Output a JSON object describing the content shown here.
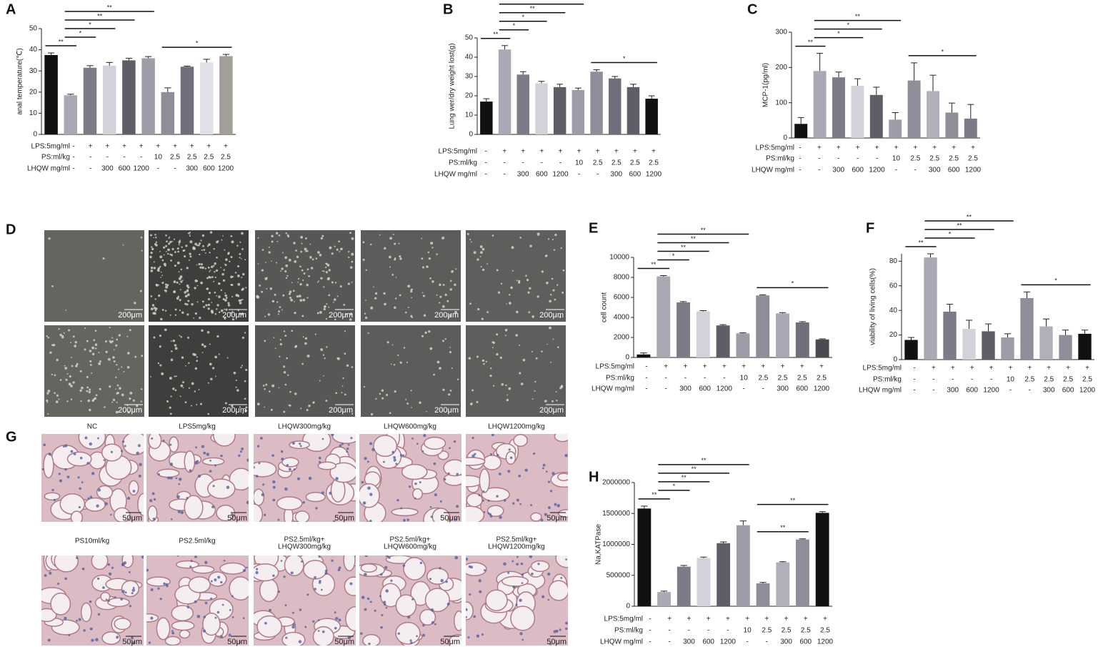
{
  "chart_data": [
    {
      "type": "bar",
      "panel_label": "A",
      "y_label": "anal temperature(℃)",
      "values": [
        37.5,
        18.5,
        31.5,
        32.5,
        35,
        36,
        20,
        32,
        34,
        37
      ],
      "errors": [
        1,
        0.5,
        1,
        1.5,
        1,
        0.8,
        2,
        0.3,
        1.5,
        0.8
      ],
      "colors": [
        "#111111",
        "#a9a9b5",
        "#7c7c88",
        "#d2d2da",
        "#5e5e68",
        "#9d9da9",
        "#8e8e9a",
        "#6f6f7b",
        "#e0e0e8",
        "#a19f97"
      ],
      "ylim": [
        0,
        50
      ],
      "yticks": [
        0,
        10,
        20,
        30,
        40,
        50
      ],
      "treatments": [
        {
          "name": "LPS:5mg/ml",
          "cells": [
            "-",
            "+",
            "+",
            "+",
            "+",
            "+",
            "+",
            "+",
            "+",
            "+"
          ]
        },
        {
          "name": "PS:ml/kg",
          "cells": [
            "-",
            "-",
            "-",
            "-",
            "-",
            "10",
            "2.5",
            "2.5",
            "2.5",
            "2.5"
          ]
        },
        {
          "name": "LHQW mg/ml",
          "cells": [
            "-",
            "-",
            "300",
            "600",
            "1200",
            "-",
            "-",
            "300",
            "600",
            "1200"
          ]
        }
      ],
      "significance": [
        {
          "from": 0,
          "to": 1,
          "label": "**"
        },
        {
          "from": 1,
          "to": 2,
          "label": "*"
        },
        {
          "from": 1,
          "to": 3,
          "label": "*"
        },
        {
          "from": 1,
          "to": 4,
          "label": "**"
        },
        {
          "from": 1,
          "to": 5,
          "label": "**"
        },
        {
          "from": 6,
          "to": 9,
          "label": "*"
        }
      ]
    },
    {
      "type": "bar",
      "panel_label": "B",
      "y_label": "Lung wer/dry weight lost(g)",
      "values": [
        17,
        44,
        31,
        26.5,
        24.5,
        23,
        32.5,
        29,
        24.5,
        18.5
      ],
      "errors": [
        1.5,
        2,
        1.5,
        1,
        1.5,
        1,
        1,
        1,
        1.5,
        1.5
      ],
      "colors": [
        "#111111",
        "#a9a9b5",
        "#7c7c88",
        "#d2d2da",
        "#5e5e68",
        "#9d9da9",
        "#8e8e9a",
        "#6f6f7b",
        "#5e5e68",
        "#111111"
      ],
      "ylim": [
        0,
        50
      ],
      "yticks": [
        0,
        10,
        20,
        30,
        40,
        50
      ],
      "treatments": [
        {
          "name": "LPS:5mg/ml",
          "cells": [
            "-",
            "+",
            "+",
            "+",
            "+",
            "+",
            "+",
            "+",
            "+",
            "+"
          ]
        },
        {
          "name": "PS:ml/kg",
          "cells": [
            "-",
            "-",
            "-",
            "-",
            "-",
            "10",
            "2.5",
            "2.5",
            "2.5",
            "2.5"
          ]
        },
        {
          "name": "LHQW mg/ml",
          "cells": [
            "-",
            "-",
            "300",
            "600",
            "1200",
            "-",
            "-",
            "300",
            "600",
            "1200"
          ]
        }
      ],
      "significance": [
        {
          "from": 0,
          "to": 1,
          "label": "**"
        },
        {
          "from": 1,
          "to": 2,
          "label": "*"
        },
        {
          "from": 1,
          "to": 3,
          "label": "*"
        },
        {
          "from": 1,
          "to": 4,
          "label": "**"
        },
        {
          "from": 1,
          "to": 5,
          "label": "**"
        },
        {
          "from": 6,
          "to": 9,
          "label": "*"
        }
      ]
    },
    {
      "type": "bar",
      "panel_label": "C",
      "y_label": "MCP-1(pg/ml)",
      "values": [
        40,
        190,
        172,
        148,
        122,
        52,
        163,
        133,
        72,
        55
      ],
      "errors": [
        18,
        50,
        15,
        20,
        22,
        20,
        50,
        45,
        27,
        40
      ],
      "colors": [
        "#111111",
        "#a9a9b5",
        "#7c7c88",
        "#d2d2da",
        "#5e5e68",
        "#9d9da9",
        "#8e8e9a",
        "#b0b0ba",
        "#8e8e9a",
        "#7c7c88"
      ],
      "ylim": [
        0,
        300
      ],
      "yticks": [
        0,
        100,
        200,
        300
      ],
      "treatments": [
        {
          "name": "LPS:5mg/ml",
          "cells": [
            "-",
            "+",
            "+",
            "+",
            "+",
            "+",
            "+",
            "+",
            "+",
            "+"
          ]
        },
        {
          "name": "PS:ml/kg",
          "cells": [
            "-",
            "-",
            "-",
            "-",
            "-",
            "10",
            "2.5",
            "2.5",
            "2.5",
            "2.5"
          ]
        },
        {
          "name": "LHQW mg/ml",
          "cells": [
            "-",
            "-",
            "300",
            "600",
            "1200",
            "-",
            "-",
            "300",
            "600",
            "1200"
          ]
        }
      ],
      "significance": [
        {
          "from": 0,
          "to": 1,
          "label": "**"
        },
        {
          "from": 1,
          "to": 3,
          "label": "*"
        },
        {
          "from": 1,
          "to": 4,
          "label": "*"
        },
        {
          "from": 1,
          "to": 5,
          "label": "**"
        },
        {
          "from": 6,
          "to": 9,
          "label": "*"
        }
      ]
    },
    {
      "type": "bar",
      "panel_label": "E",
      "y_label": "cell count",
      "values": [
        300,
        8100,
        5500,
        4600,
        3200,
        2400,
        6200,
        4400,
        3500,
        1800
      ],
      "errors": [
        150,
        80,
        80,
        80,
        80,
        60,
        60,
        80,
        80,
        60
      ],
      "colors": [
        "#111111",
        "#a9a9b5",
        "#7c7c88",
        "#d2d2da",
        "#5e5e68",
        "#9d9da9",
        "#8e8e9a",
        "#a9a9b5",
        "#6f6f7b",
        "#4a4a52"
      ],
      "ylim": [
        0,
        10000
      ],
      "yticks": [
        0,
        2000,
        4000,
        6000,
        8000,
        10000
      ],
      "treatments": [
        {
          "name": "LPS:5mg/ml",
          "cells": [
            "-",
            "+",
            "+",
            "+",
            "+",
            "+",
            "+",
            "+",
            "+",
            "+"
          ]
        },
        {
          "name": "PS:ml/kg",
          "cells": [
            "-",
            "-",
            "-",
            "-",
            "-",
            "10",
            "2.5",
            "2.5",
            "2.5",
            "2.5"
          ]
        },
        {
          "name": "LHQW mg/ml",
          "cells": [
            "-",
            "-",
            "300",
            "600",
            "1200",
            "-",
            "-",
            "300",
            "600",
            "1200"
          ]
        }
      ],
      "significance": [
        {
          "from": 0,
          "to": 1,
          "label": "**"
        },
        {
          "from": 1,
          "to": 2,
          "label": "*"
        },
        {
          "from": 1,
          "to": 3,
          "label": "**"
        },
        {
          "from": 1,
          "to": 4,
          "label": "**"
        },
        {
          "from": 1,
          "to": 5,
          "label": "**"
        },
        {
          "from": 6,
          "to": 9,
          "label": "*"
        }
      ]
    },
    {
      "type": "bar",
      "panel_label": "F",
      "y_label": "viability of living cells(%)",
      "values": [
        16,
        83,
        39,
        25,
        23,
        18,
        50,
        27,
        20,
        21
      ],
      "errors": [
        2,
        3,
        6,
        7,
        6,
        3,
        5,
        6,
        4,
        3
      ],
      "colors": [
        "#111111",
        "#a9a9b5",
        "#7c7c88",
        "#d2d2da",
        "#5e5e68",
        "#9d9da9",
        "#8e8e9a",
        "#b0b0ba",
        "#8e8e9a",
        "#111111"
      ],
      "ylim": [
        0,
        86
      ],
      "yticks": [
        0,
        20,
        40,
        60,
        80
      ],
      "treatments": [
        {
          "name": "LPS:5mg/ml",
          "cells": [
            "-",
            "+",
            "+",
            "+",
            "+",
            "+",
            "+",
            "+",
            "+",
            "+"
          ]
        },
        {
          "name": "PS:ml/kg",
          "cells": [
            "-",
            "-",
            "-",
            "-",
            "-",
            "10",
            "2.5",
            "2.5",
            "2.5",
            "2.5"
          ]
        },
        {
          "name": "LHQW mg/ml",
          "cells": [
            "-",
            "-",
            "300",
            "600",
            "1200",
            "-",
            "-",
            "300",
            "600",
            "1200"
          ]
        }
      ],
      "significance": [
        {
          "from": 0,
          "to": 1,
          "label": "**"
        },
        {
          "from": 1,
          "to": 3,
          "label": "*"
        },
        {
          "from": 1,
          "to": 4,
          "label": "**"
        },
        {
          "from": 1,
          "to": 5,
          "label": "**"
        },
        {
          "from": 6,
          "to": 9,
          "label": "*"
        }
      ]
    },
    {
      "type": "bar",
      "panel_label": "H",
      "y_label": "Na,KATPase",
      "values": [
        1580000,
        230000,
        640000,
        780000,
        1020000,
        1310000,
        370000,
        710000,
        1080000,
        1510000
      ],
      "errors": [
        40000,
        15000,
        20000,
        15000,
        20000,
        70000,
        15000,
        10000,
        10000,
        20000
      ],
      "colors": [
        "#111111",
        "#a9a9b5",
        "#7c7c88",
        "#d2d2da",
        "#5e5e68",
        "#9d9da9",
        "#8e8e9a",
        "#b0b0ba",
        "#8e8e9a",
        "#111111"
      ],
      "ylim": [
        0,
        2000000
      ],
      "yticks": [
        0,
        500000,
        1000000,
        1500000,
        2000000
      ],
      "treatments": [
        {
          "name": "LPS:5mg/ml",
          "cells": [
            "-",
            "+",
            "+",
            "+",
            "+",
            "+",
            "+",
            "+",
            "+",
            "+"
          ]
        },
        {
          "name": "PS:ml/kg",
          "cells": [
            "-",
            "-",
            "-",
            "-",
            "-",
            "10",
            "2.5",
            "2.5",
            "2.5",
            "2.5"
          ]
        },
        {
          "name": "LHQW mg/ml",
          "cells": [
            "-",
            "-",
            "300",
            "600",
            "1200",
            "-",
            "-",
            "300",
            "600",
            "1200"
          ]
        }
      ],
      "significance": [
        {
          "from": 0,
          "to": 1,
          "label": "**"
        },
        {
          "from": 1,
          "to": 2,
          "label": "*"
        },
        {
          "from": 1,
          "to": 3,
          "label": "**"
        },
        {
          "from": 1,
          "to": 4,
          "label": "**"
        },
        {
          "from": 1,
          "to": 5,
          "label": "**"
        },
        {
          "from": 6,
          "to": 8,
          "label": "**"
        },
        {
          "from": 6,
          "to": 9,
          "label": "**"
        }
      ]
    }
  ],
  "micrographs": {
    "panel_label": "D",
    "scale_bar": "200μm"
  },
  "histology": {
    "panel_label": "G",
    "scale_bar": "50μm",
    "titles": [
      [
        "NC"
      ],
      [
        "LPS5mg/kg"
      ],
      [
        "LHQW300mg/kg"
      ],
      [
        "LHQW600mg/kg"
      ],
      [
        "LHQW1200mg/kg"
      ],
      [
        "PS10ml/kg"
      ],
      [
        "PS2.5ml/kg"
      ],
      [
        "PS2.5ml/kg+",
        "LHQW300mg/kg"
      ],
      [
        "PS2.5ml/kg+",
        "LHQW600mg/kg"
      ],
      [
        "PS2.5ml/kg+",
        "LHQW1200mg/kg"
      ]
    ]
  }
}
